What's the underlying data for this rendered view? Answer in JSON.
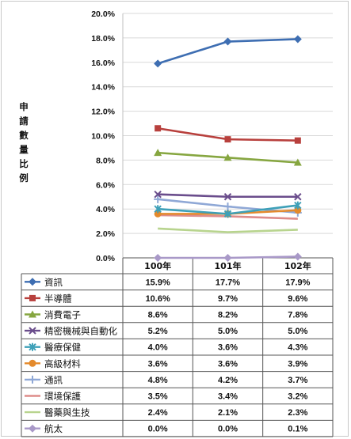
{
  "chart_data": {
    "type": "line",
    "title": "",
    "xlabel": "",
    "ylabel": "申請數量比例",
    "ylim": [
      0,
      20
    ],
    "yticks": [
      "0.0%",
      "2.0%",
      "4.0%",
      "6.0%",
      "8.0%",
      "10.0%",
      "12.0%",
      "14.0%",
      "16.0%",
      "18.0%",
      "20.0%"
    ],
    "grid": "horizontal",
    "categories": [
      "100年",
      "101年",
      "102年"
    ],
    "legend_position": "data-table-left",
    "series": [
      {
        "name": "資訊",
        "values": [
          15.9,
          17.7,
          17.9
        ],
        "labels": [
          "15.9%",
          "17.7%",
          "17.9%"
        ],
        "color": "#3e6eb2",
        "marker": "diamond"
      },
      {
        "name": "半導體",
        "values": [
          10.6,
          9.7,
          9.6
        ],
        "labels": [
          "10.6%",
          "9.7%",
          "9.6%"
        ],
        "color": "#b8403d",
        "marker": "square"
      },
      {
        "name": "消費電子",
        "values": [
          8.6,
          8.2,
          7.8
        ],
        "labels": [
          "8.6%",
          "8.2%",
          "7.8%"
        ],
        "color": "#86a640",
        "marker": "triangle"
      },
      {
        "name": "精密機械與自動化",
        "values": [
          5.2,
          5.0,
          5.0
        ],
        "labels": [
          "5.2%",
          "5.0%",
          "5.0%"
        ],
        "color": "#6a4d8c",
        "marker": "x"
      },
      {
        "name": "醫療保健",
        "values": [
          4.0,
          3.6,
          4.3
        ],
        "labels": [
          "4.0%",
          "3.6%",
          "4.3%"
        ],
        "color": "#3ea0b8",
        "marker": "star"
      },
      {
        "name": "高級材料",
        "values": [
          3.6,
          3.6,
          3.9
        ],
        "labels": [
          "3.6%",
          "3.6%",
          "3.9%"
        ],
        "color": "#e48a2c",
        "marker": "circle"
      },
      {
        "name": "通訊",
        "values": [
          4.8,
          4.2,
          3.7
        ],
        "labels": [
          "4.8%",
          "4.2%",
          "3.7%"
        ],
        "color": "#8fa8d6",
        "marker": "plus"
      },
      {
        "name": "環境保護",
        "values": [
          3.5,
          3.4,
          3.2
        ],
        "labels": [
          "3.5%",
          "3.4%",
          "3.2%"
        ],
        "color": "#de8c8a",
        "marker": "none"
      },
      {
        "name": "醫藥與生技",
        "values": [
          2.4,
          2.1,
          2.3
        ],
        "labels": [
          "2.4%",
          "2.1%",
          "2.3%"
        ],
        "color": "#b8d48e",
        "marker": "none"
      },
      {
        "name": "航太",
        "values": [
          0.0,
          0.0,
          0.1
        ],
        "labels": [
          "0.0%",
          "0.0%",
          "0.1%"
        ],
        "color": "#a999c8",
        "marker": "diamond"
      }
    ]
  }
}
